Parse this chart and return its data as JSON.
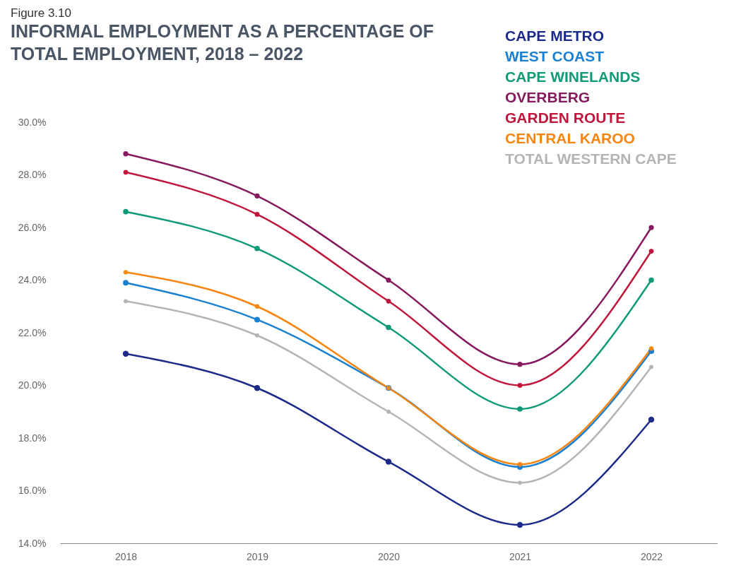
{
  "chart_data": {
    "type": "line",
    "title": "INFORMAL EMPLOYMENT AS A PERCENTAGE OF TOTAL EMPLOYMENT, 2018 – 2022",
    "annotations": [
      "Figure 3.10"
    ],
    "categories": [
      "2018",
      "2019",
      "2020",
      "2021",
      "2022"
    ],
    "ylim": [
      14,
      30
    ],
    "yticks": [
      {
        "value": 14,
        "label": "14.0%"
      },
      {
        "value": 16,
        "label": "16.0%"
      },
      {
        "value": 18,
        "label": "18.0%"
      },
      {
        "value": 20,
        "label": "20.0%"
      },
      {
        "value": 22,
        "label": "22.0%"
      },
      {
        "value": 24,
        "label": "24.0%"
      },
      {
        "value": 26,
        "label": "26.0%"
      },
      {
        "value": 28,
        "label": "28.0%"
      },
      {
        "value": 30,
        "label": "30.0%"
      }
    ],
    "grid": false,
    "legend": "top right",
    "marker": "circle",
    "line_style": "solid",
    "series": [
      {
        "name": "CAPE METRO",
        "color": "#1c2a8a",
        "values": [
          21.2,
          19.9,
          17.1,
          14.7,
          18.7
        ]
      },
      {
        "name": "WEST COAST",
        "color": "#1a80d0",
        "values": [
          23.9,
          22.5,
          19.9,
          16.9,
          21.3
        ]
      },
      {
        "name": "CAPE WINELANDS",
        "color": "#0f9a78",
        "values": [
          26.6,
          25.2,
          22.2,
          19.1,
          24.0
        ]
      },
      {
        "name": "OVERBERG",
        "color": "#861a5e",
        "values": [
          28.8,
          27.2,
          24.0,
          20.8,
          26.0
        ]
      },
      {
        "name": "GARDEN ROUTE",
        "color": "#c0163c",
        "values": [
          28.1,
          26.5,
          23.2,
          20.0,
          25.1
        ]
      },
      {
        "name": "CENTRAL KAROO",
        "color": "#f7850f",
        "values": [
          24.3,
          23.0,
          19.9,
          17.0,
          21.4
        ]
      },
      {
        "name": "TOTAL WESTERN CAPE",
        "color": "#b4b4b4",
        "values": [
          23.2,
          21.9,
          19.0,
          16.3,
          20.7
        ]
      }
    ]
  }
}
